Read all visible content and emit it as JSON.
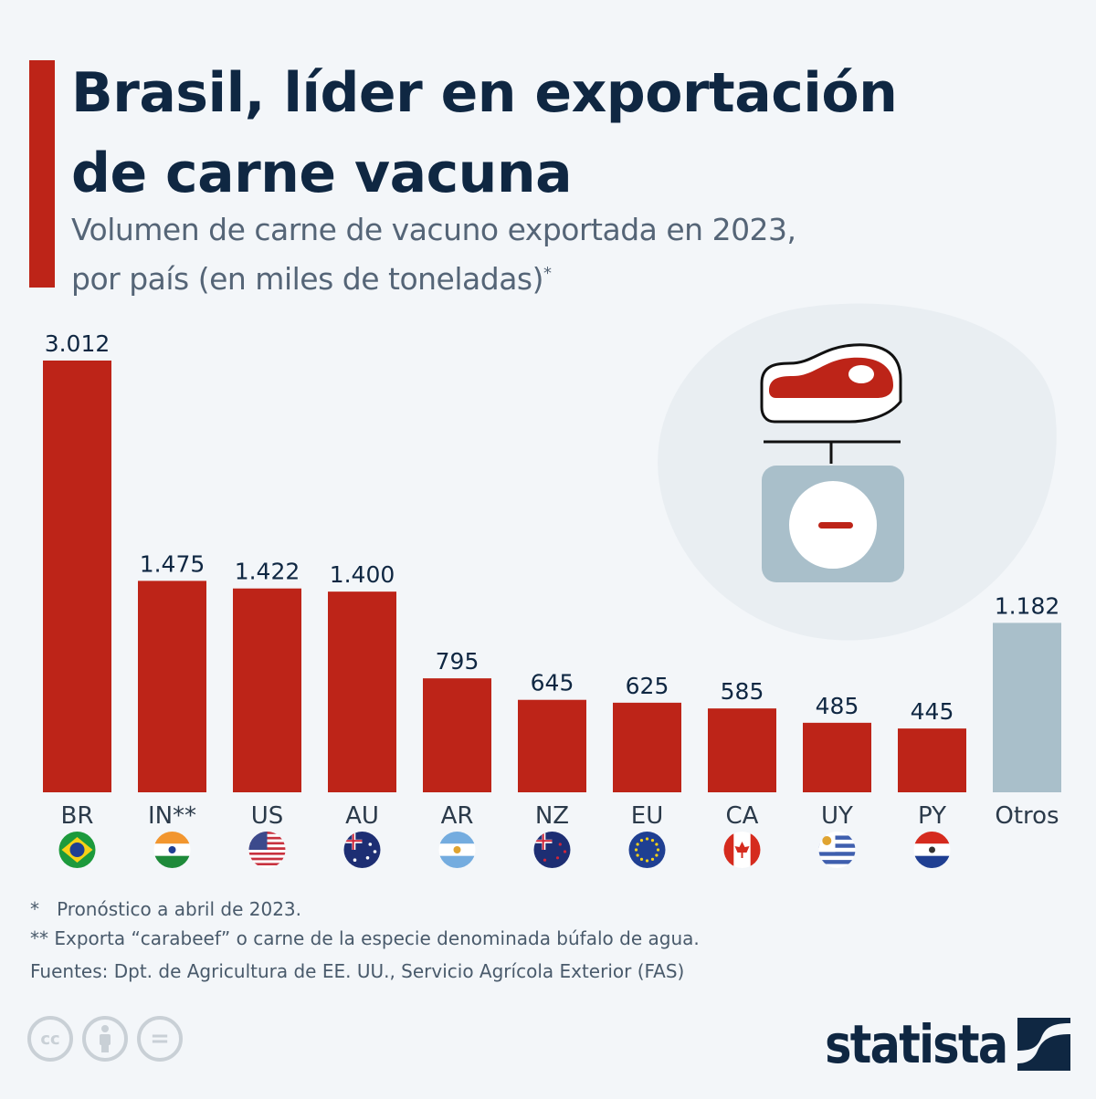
{
  "header": {
    "title_line1": "Brasil, líder en exportación",
    "title_line2": "de carne vacuna",
    "subtitle_line1": "Volumen de carne de vacuno exportada en 2023,",
    "subtitle_line2": "por país (en miles de toneladas)",
    "subtitle_mark": "*"
  },
  "colors": {
    "accent": "#bd2418",
    "bar_primary": "#bd2418",
    "bar_other": "#a9bfca",
    "title": "#0f2742",
    "background": "#f3f6f9"
  },
  "chart_data": {
    "type": "bar",
    "title": "Brasil, líder en exportación de carne vacuna",
    "subtitle": "Volumen de carne de vacuno exportada en 2023, por país (en miles de toneladas)*",
    "xlabel": "",
    "ylabel": "",
    "categories": [
      "BR",
      "IN**",
      "US",
      "AU",
      "AR",
      "NZ",
      "EU",
      "CA",
      "UY",
      "PY",
      "Otros"
    ],
    "values": [
      3012,
      1475,
      1422,
      1400,
      795,
      645,
      625,
      585,
      485,
      445,
      1182
    ],
    "value_labels": [
      "3.012",
      "1.475",
      "1.422",
      "1.400",
      "795",
      "645",
      "625",
      "585",
      "485",
      "445",
      "1.182"
    ],
    "flags": [
      "brazil",
      "india",
      "usa",
      "australia",
      "argentina",
      "new-zealand",
      "european-union",
      "canada",
      "uruguay",
      "paraguay",
      ""
    ],
    "highlight_last_category": true,
    "ylim": [
      0,
      3012
    ],
    "grid": false,
    "legend": "none"
  },
  "footnotes": {
    "note1_mark": "*",
    "note1": "Pronóstico a abril de 2023.",
    "note2_mark": "**",
    "note2": "Exporta “carabeef” o carne de la especie denominada búfalo de agua.",
    "sources": "Fuentes: Dpt. de Agricultura de EE. UU., Servicio Agrícola Exterior (FAS)"
  },
  "license": {
    "cc": "cc",
    "eq": "="
  },
  "brand": {
    "name": "statista"
  }
}
